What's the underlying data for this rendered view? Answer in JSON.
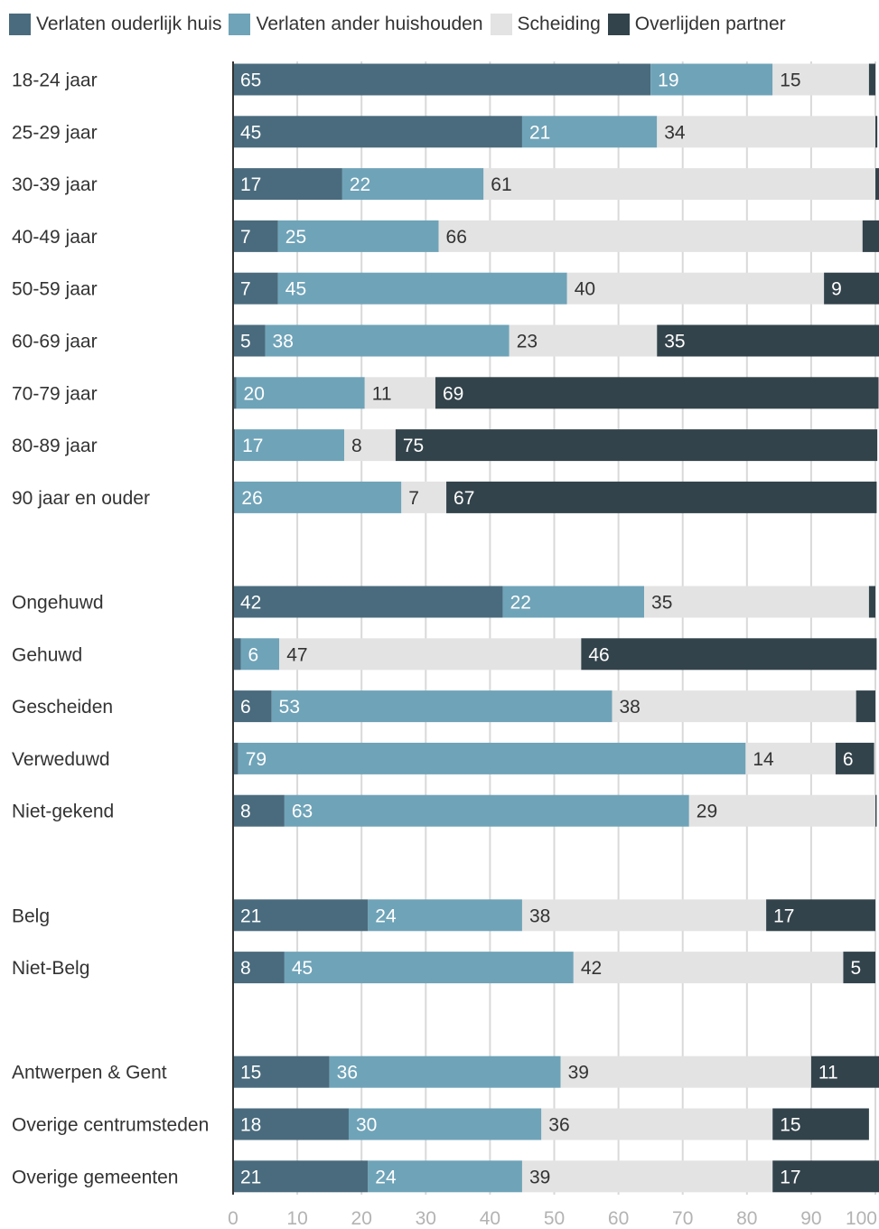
{
  "chart_data": {
    "type": "bar",
    "orientation": "horizontal",
    "stacked": true,
    "categories": [
      "18-24 jaar",
      "25-29 jaar",
      "30-39 jaar",
      "40-49 jaar",
      "50-59 jaar",
      "60-69 jaar",
      "70-79 jaar",
      "80-89 jaar",
      "90 jaar en ouder",
      "",
      "Ongehuwd",
      "Gehuwd",
      "Gescheiden",
      "Verweduwd",
      "Niet-gekend",
      "",
      "Belg",
      "Niet-Belg",
      "",
      "Antwerpen & Gent",
      "Overige centrumsteden",
      "Overige gemeenten"
    ],
    "series": [
      {
        "name": "Verlaten ouderlijk huis",
        "color": "#4a6b7d",
        "values": [
          65,
          45,
          17,
          7,
          7,
          5,
          0.5,
          0.3,
          0.2,
          null,
          42,
          1.2,
          6,
          0.8,
          8,
          null,
          21,
          8,
          null,
          15,
          18,
          21
        ]
      },
      {
        "name": "Verlaten ander huishouden",
        "color": "#6fa3b8",
        "values": [
          19,
          21,
          22,
          25,
          45,
          38,
          20,
          17,
          26,
          null,
          22,
          6,
          53,
          79,
          63,
          null,
          24,
          45,
          null,
          36,
          30,
          24
        ]
      },
      {
        "name": "Scheiding",
        "color": "#e3e3e3",
        "values": [
          15,
          34,
          61,
          66,
          40,
          23,
          11,
          8,
          7,
          null,
          35,
          47,
          38,
          14,
          29,
          null,
          38,
          42,
          null,
          39,
          36,
          39
        ]
      },
      {
        "name": "Overlijden partner",
        "color": "#33434b",
        "values": [
          1,
          0.3,
          1,
          3,
          9,
          35,
          69,
          75,
          67,
          null,
          1,
          46,
          3,
          6,
          0.2,
          null,
          17,
          5,
          null,
          11,
          15,
          17
        ]
      }
    ],
    "xlim": [
      0,
      100
    ],
    "xticks": [
      "0",
      "10",
      "20",
      "30",
      "40",
      "50",
      "60",
      "70",
      "80",
      "90",
      "100"
    ],
    "grid": true,
    "legend_position": "top-left",
    "data_labels": true,
    "title": "",
    "xlabel": "",
    "ylabel": ""
  }
}
